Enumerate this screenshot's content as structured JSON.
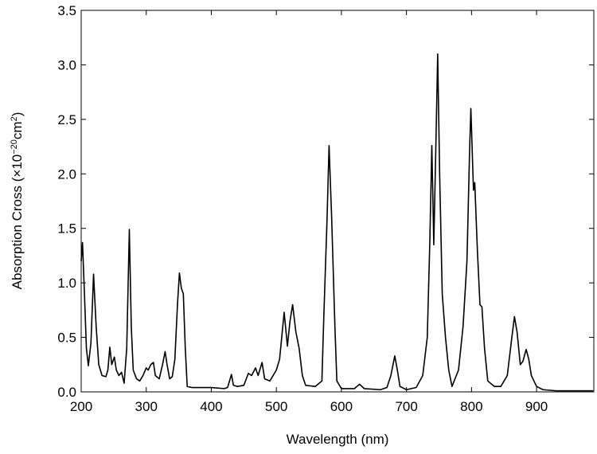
{
  "chart_data": {
    "type": "line",
    "xlabel": "Wavelength (nm)",
    "ylabel": [
      {
        "text": "Absorption Cross (×10"
      },
      {
        "text": "−20",
        "sup": true
      },
      {
        "text": "cm"
      },
      {
        "text": "2",
        "sup": true
      },
      {
        "text": ")"
      }
    ],
    "color": "#000000",
    "x": [
      200,
      202,
      205,
      208,
      211,
      215,
      219,
      223,
      227,
      232,
      238,
      241,
      244,
      247,
      251,
      254,
      258,
      262,
      266,
      270,
      274,
      277,
      280,
      285,
      290,
      295,
      300,
      303,
      307,
      311,
      314,
      320,
      325,
      329,
      332,
      336,
      340,
      344,
      348,
      351,
      354,
      357,
      360,
      363,
      370,
      400,
      420,
      425,
      431,
      434,
      440,
      450,
      457,
      462,
      468,
      472,
      478,
      482,
      490,
      500,
      505,
      512,
      517,
      521,
      525,
      530,
      535,
      540,
      545,
      560,
      570,
      573,
      578,
      581,
      585,
      590,
      593,
      600,
      620,
      628,
      635,
      660,
      670,
      676,
      682,
      686,
      690,
      700,
      715,
      725,
      732,
      736,
      739,
      742,
      745,
      748,
      751,
      755,
      760,
      765,
      770,
      780,
      787,
      793,
      797,
      799,
      803,
      805,
      809,
      813,
      816,
      820,
      825,
      835,
      845,
      855,
      862,
      866,
      870,
      875,
      879,
      884,
      888,
      892,
      900,
      910,
      930,
      950,
      987
    ],
    "values": [
      1.2,
      1.37,
      0.9,
      0.4,
      0.24,
      0.45,
      1.08,
      0.6,
      0.25,
      0.15,
      0.14,
      0.2,
      0.41,
      0.25,
      0.32,
      0.2,
      0.15,
      0.18,
      0.08,
      0.4,
      1.49,
      0.6,
      0.2,
      0.12,
      0.1,
      0.15,
      0.22,
      0.2,
      0.25,
      0.27,
      0.15,
      0.12,
      0.25,
      0.37,
      0.25,
      0.12,
      0.14,
      0.3,
      0.8,
      1.09,
      0.95,
      0.9,
      0.4,
      0.05,
      0.04,
      0.04,
      0.03,
      0.04,
      0.16,
      0.06,
      0.05,
      0.06,
      0.17,
      0.15,
      0.22,
      0.15,
      0.27,
      0.12,
      0.1,
      0.2,
      0.3,
      0.73,
      0.42,
      0.65,
      0.8,
      0.55,
      0.4,
      0.15,
      0.06,
      0.05,
      0.1,
      0.7,
      1.6,
      2.26,
      1.6,
      0.6,
      0.1,
      0.03,
      0.03,
      0.07,
      0.03,
      0.02,
      0.04,
      0.15,
      0.33,
      0.2,
      0.05,
      0.02,
      0.04,
      0.15,
      0.5,
      1.4,
      2.26,
      1.35,
      2.2,
      3.1,
      2.0,
      0.9,
      0.5,
      0.2,
      0.05,
      0.2,
      0.6,
      1.2,
      2.2,
      2.6,
      1.85,
      1.92,
      1.3,
      0.8,
      0.78,
      0.4,
      0.1,
      0.05,
      0.05,
      0.15,
      0.5,
      0.69,
      0.55,
      0.25,
      0.28,
      0.39,
      0.3,
      0.15,
      0.05,
      0.02,
      0.01,
      0.01,
      0.01
    ],
    "xlim": [
      200,
      988
    ],
    "ylim": [
      0,
      3.5
    ],
    "xticks": [
      200,
      300,
      400,
      500,
      600,
      700,
      800,
      900
    ],
    "yticks": [
      {
        "value": 0,
        "label": "0.0"
      },
      0.5,
      {
        "value": 1,
        "label": "1.0"
      },
      1.5,
      {
        "value": 2,
        "label": "2.0"
      },
      2.5,
      {
        "value": 3,
        "label": "3.0"
      },
      3.5
    ]
  }
}
